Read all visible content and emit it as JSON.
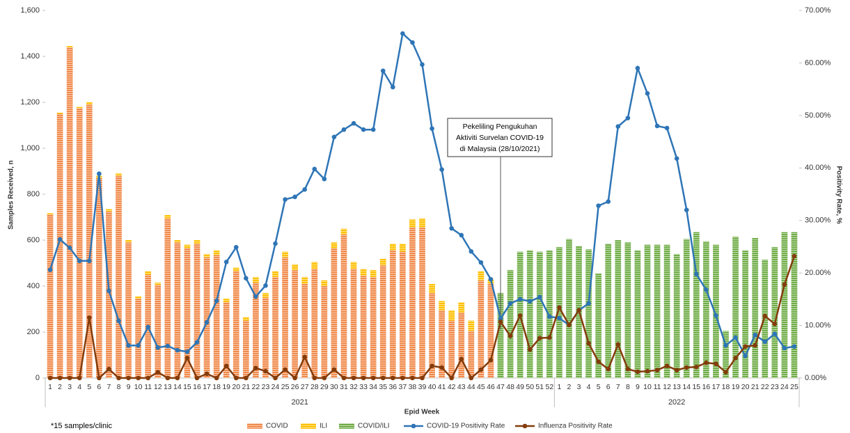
{
  "chart_data": {
    "type": "bar",
    "x_label": "Epid Week",
    "y_label": "Samples Received, n",
    "y2_label": "Positivity Rate, %",
    "annotation": [
      "Pekeliling Pengukuhan",
      "Aktiviti Survelan COVID-19",
      "di Malaysia (28/10/2021)"
    ],
    "footnote": "*15 samples/clinic",
    "grid": false,
    "categories": [
      "1",
      "2",
      "3",
      "4",
      "5",
      "6",
      "7",
      "8",
      "9",
      "10",
      "11",
      "12",
      "13",
      "14",
      "15",
      "16",
      "17",
      "18",
      "19",
      "20",
      "21",
      "22",
      "23",
      "24",
      "25",
      "26",
      "27",
      "28",
      "29",
      "30",
      "31",
      "32",
      "33",
      "34",
      "35",
      "36",
      "37",
      "38",
      "39",
      "40",
      "41",
      "42",
      "43",
      "44",
      "45",
      "46",
      "47",
      "48",
      "49",
      "50",
      "51",
      "52",
      "1",
      "2",
      "3",
      "4",
      "5",
      "6",
      "7",
      "8",
      "9",
      "10",
      "11",
      "12",
      "13",
      "14",
      "15",
      "16",
      "17",
      "18",
      "19",
      "20",
      "21",
      "22",
      "23",
      "24",
      "25"
    ],
    "years": [
      "2021",
      "2021",
      "2021",
      "2021",
      "2021",
      "2021",
      "2021",
      "2021",
      "2021",
      "2021",
      "2021",
      "2021",
      "2021",
      "2021",
      "2021",
      "2021",
      "2021",
      "2021",
      "2021",
      "2021",
      "2021",
      "2021",
      "2021",
      "2021",
      "2021",
      "2021",
      "2021",
      "2021",
      "2021",
      "2021",
      "2021",
      "2021",
      "2021",
      "2021",
      "2021",
      "2021",
      "2021",
      "2021",
      "2021",
      "2021",
      "2021",
      "2021",
      "2021",
      "2021",
      "2021",
      "2021",
      "2021",
      "2021",
      "2021",
      "2021",
      "2021",
      "2021",
      "2022",
      "2022",
      "2022",
      "2022",
      "2022",
      "2022",
      "2022",
      "2022",
      "2022",
      "2022",
      "2022",
      "2022",
      "2022",
      "2022",
      "2022",
      "2022",
      "2022",
      "2022",
      "2022",
      "2022",
      "2022",
      "2022",
      "2022",
      "2022",
      "2022"
    ],
    "ylim": [
      0,
      1600
    ],
    "yticks": [
      0,
      200,
      400,
      600,
      800,
      {
        "value": 1000,
        "label": "1,000"
      },
      {
        "value": 1200,
        "label": "1,200"
      },
      {
        "value": 1400,
        "label": "1,400"
      },
      {
        "value": 1600,
        "label": "1,600"
      }
    ],
    "y2lim": [
      0,
      70
    ],
    "y2ticks": [
      {
        "value": 0,
        "label": "0.00%"
      },
      {
        "value": 10,
        "label": "10.00%"
      },
      {
        "value": 20,
        "label": "20.00%"
      },
      {
        "value": 30,
        "label": "30.00%"
      },
      {
        "value": 40,
        "label": "40.00%"
      },
      {
        "value": 50,
        "label": "50.00%"
      },
      {
        "value": 60,
        "label": "60.00%"
      },
      {
        "value": 70,
        "label": "70.00%"
      }
    ],
    "series": [
      {
        "name": "COVID",
        "type": "bar",
        "color": "#f08a4b",
        "values": [
          712,
          1150,
          1440,
          1175,
          1190,
          870,
          725,
          880,
          590,
          345,
          450,
          405,
          695,
          590,
          565,
          585,
          525,
          535,
          330,
          465,
          250,
          415,
          350,
          440,
          525,
          470,
          410,
          475,
          400,
          565,
          625,
          475,
          445,
          440,
          490,
          555,
          550,
          655,
          655,
          370,
          295,
          250,
          285,
          205,
          425,
          410,
          null,
          null,
          null,
          null,
          null,
          null,
          null,
          null,
          null,
          null,
          null,
          null,
          null,
          null,
          null,
          null,
          null,
          null,
          null,
          null,
          null,
          null,
          null,
          null,
          null,
          null,
          null,
          null,
          null,
          null,
          null
        ]
      },
      {
        "name": "ILI",
        "type": "bar",
        "color": "#ffc000",
        "values": [
          5,
          5,
          5,
          5,
          10,
          10,
          10,
          10,
          10,
          10,
          15,
          10,
          15,
          10,
          15,
          15,
          15,
          20,
          15,
          15,
          15,
          25,
          20,
          25,
          25,
          25,
          30,
          30,
          25,
          25,
          25,
          30,
          30,
          30,
          30,
          30,
          35,
          35,
          40,
          40,
          40,
          45,
          45,
          45,
          40,
          20,
          null,
          null,
          null,
          null,
          null,
          null,
          null,
          null,
          null,
          null,
          null,
          null,
          null,
          null,
          null,
          null,
          null,
          null,
          null,
          null,
          null,
          null,
          null,
          null,
          null,
          null,
          null,
          null,
          null,
          null,
          null
        ]
      },
      {
        "name": "COVID/ILI",
        "type": "bar",
        "color": "#70ad47",
        "values": [
          null,
          null,
          null,
          null,
          null,
          null,
          null,
          null,
          null,
          null,
          null,
          null,
          null,
          null,
          null,
          null,
          null,
          null,
          null,
          null,
          null,
          null,
          null,
          null,
          null,
          null,
          null,
          null,
          null,
          null,
          null,
          null,
          null,
          null,
          null,
          null,
          null,
          null,
          null,
          null,
          null,
          null,
          null,
          null,
          null,
          null,
          370,
          470,
          550,
          555,
          550,
          555,
          570,
          605,
          575,
          560,
          455,
          585,
          600,
          590,
          555,
          580,
          580,
          580,
          540,
          605,
          635,
          595,
          580,
          205,
          615,
          555,
          610,
          515,
          570,
          635,
          635
        ]
      },
      {
        "name": "COVID-19 Positivity Rate",
        "type": "line",
        "axis": "y2",
        "color": "#2e75b6",
        "values": [
          20.6,
          26.4,
          24.8,
          22.3,
          22.3,
          38.9,
          16.6,
          10.9,
          6.2,
          6.2,
          9.7,
          5.8,
          6.1,
          5.3,
          5.0,
          6.8,
          10.6,
          14.7,
          22.1,
          24.9,
          19.0,
          15.5,
          17.6,
          25.6,
          34.0,
          34.5,
          35.9,
          39.8,
          37.9,
          45.9,
          47.3,
          48.5,
          47.3,
          47.3,
          58.5,
          55.4,
          65.6,
          63.9,
          59.7,
          47.5,
          39.7,
          28.5,
          27.2,
          24.1,
          22.0,
          18.8,
          11.3,
          14.2,
          15.0,
          14.6,
          15.4,
          11.7,
          11.4,
          10.1,
          12.9,
          14.2,
          32.8,
          33.6,
          47.9,
          49.5,
          59.0,
          54.2,
          48.0,
          47.6,
          41.8,
          32.0,
          19.8,
          16.8,
          11.9,
          6.2,
          7.7,
          4.2,
          8.2,
          6.9,
          8.4,
          5.7,
          6.0
        ]
      },
      {
        "name": "Influenza Positivity Rate",
        "type": "line",
        "axis": "y2",
        "color": "#843c0c",
        "values": [
          0,
          0,
          0,
          0,
          11.5,
          0,
          1.7,
          0,
          0,
          0,
          0,
          1.1,
          0,
          0,
          3.8,
          0,
          0.8,
          0,
          2.3,
          0,
          0,
          1.9,
          1.3,
          0,
          1.6,
          0,
          4.0,
          0,
          0,
          1.6,
          0,
          0,
          0,
          0,
          0,
          0,
          0,
          0,
          0,
          2.3,
          2.0,
          0,
          3.6,
          0,
          1.6,
          3.4,
          10.7,
          8.0,
          11.9,
          5.4,
          7.6,
          7.7,
          13.4,
          10.1,
          12.9,
          6.6,
          3.1,
          1.7,
          6.4,
          1.7,
          1.2,
          1.3,
          1.5,
          2.3,
          1.5,
          2.0,
          2.1,
          2.9,
          2.7,
          1.1,
          3.8,
          6.0,
          6.2,
          11.8,
          10.3,
          17.8,
          23.2
        ]
      }
    ]
  }
}
